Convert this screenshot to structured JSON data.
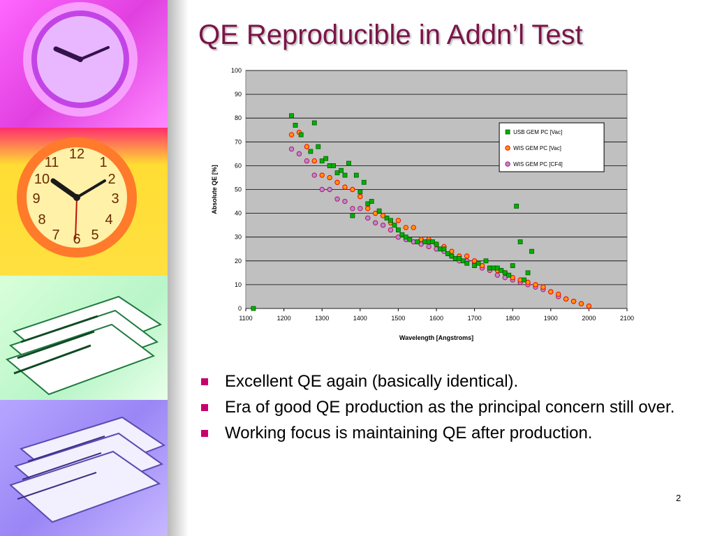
{
  "slide": {
    "title": "QE Reproducible in Addn’l Test",
    "bullets": [
      "Excellent QE again (basically identical).",
      "Era of good QE production as the principal concern still over.",
      "Working focus is maintaining QE after production."
    ],
    "page_number": "2"
  },
  "sidebar": {
    "images": [
      "purple-clock",
      "yellow-clock",
      "green-papers",
      "purple-papers"
    ]
  },
  "colors": {
    "title": "#7a1548",
    "bullet_marker": "#c8006e",
    "plot_background": "#c0c0c0",
    "usb_vac": "#00b000",
    "wis_vac": "#ff9900",
    "wis_cf4": "#b48cd2"
  },
  "chart_data": {
    "type": "scatter",
    "title": "",
    "xlabel": "Wavelength [Angstroms]",
    "ylabel": "Absolute QE [%]",
    "xlim": [
      1100,
      2100
    ],
    "ylim": [
      0,
      100
    ],
    "xticks": [
      1100,
      1200,
      1300,
      1400,
      1500,
      1600,
      1700,
      1800,
      1900,
      2000,
      2100
    ],
    "yticks": [
      0,
      10,
      20,
      30,
      40,
      50,
      60,
      70,
      80,
      90,
      100
    ],
    "grid": "horizontal",
    "legend_position": "upper-right",
    "series": [
      {
        "name": "USB GEM PC [Vac]",
        "marker": "square",
        "points": [
          [
            1120,
            0
          ],
          [
            1220,
            81
          ],
          [
            1230,
            77
          ],
          [
            1245,
            73
          ],
          [
            1270,
            66
          ],
          [
            1280,
            78
          ],
          [
            1290,
            68
          ],
          [
            1300,
            62
          ],
          [
            1310,
            63
          ],
          [
            1320,
            60
          ],
          [
            1330,
            60
          ],
          [
            1340,
            57
          ],
          [
            1350,
            58
          ],
          [
            1360,
            56
          ],
          [
            1370,
            61
          ],
          [
            1380,
            39
          ],
          [
            1390,
            56
          ],
          [
            1400,
            49
          ],
          [
            1410,
            53
          ],
          [
            1420,
            44
          ],
          [
            1430,
            45
          ],
          [
            1450,
            41
          ],
          [
            1470,
            38
          ],
          [
            1480,
            37
          ],
          [
            1490,
            35
          ],
          [
            1500,
            33
          ],
          [
            1510,
            31
          ],
          [
            1520,
            30
          ],
          [
            1530,
            29
          ],
          [
            1550,
            28
          ],
          [
            1570,
            28
          ],
          [
            1580,
            28
          ],
          [
            1590,
            28
          ],
          [
            1600,
            27
          ],
          [
            1610,
            25
          ],
          [
            1620,
            25
          ],
          [
            1630,
            23
          ],
          [
            1640,
            22
          ],
          [
            1650,
            21
          ],
          [
            1660,
            21
          ],
          [
            1670,
            20
          ],
          [
            1680,
            19
          ],
          [
            1700,
            18
          ],
          [
            1710,
            19
          ],
          [
            1730,
            20
          ],
          [
            1740,
            17
          ],
          [
            1750,
            17
          ],
          [
            1760,
            17
          ],
          [
            1770,
            16
          ],
          [
            1780,
            15
          ],
          [
            1790,
            14
          ],
          [
            1800,
            18
          ],
          [
            1810,
            43
          ],
          [
            1820,
            28
          ],
          [
            1830,
            12
          ],
          [
            1840,
            15
          ],
          [
            1850,
            24
          ]
        ]
      },
      {
        "name": "WIS GEM PC [Vac]",
        "marker": "circle",
        "points": [
          [
            1220,
            73
          ],
          [
            1240,
            74
          ],
          [
            1260,
            68
          ],
          [
            1280,
            62
          ],
          [
            1300,
            56
          ],
          [
            1320,
            55
          ],
          [
            1340,
            53
          ],
          [
            1360,
            51
          ],
          [
            1380,
            50
          ],
          [
            1400,
            47
          ],
          [
            1420,
            42
          ],
          [
            1440,
            40
          ],
          [
            1460,
            39
          ],
          [
            1480,
            36
          ],
          [
            1500,
            37
          ],
          [
            1520,
            34
          ],
          [
            1540,
            34
          ],
          [
            1560,
            29
          ],
          [
            1580,
            29
          ],
          [
            1600,
            27
          ],
          [
            1620,
            26
          ],
          [
            1640,
            24
          ],
          [
            1660,
            22
          ],
          [
            1680,
            22
          ],
          [
            1700,
            20
          ],
          [
            1720,
            18
          ],
          [
            1740,
            17
          ],
          [
            1760,
            16
          ],
          [
            1780,
            15
          ],
          [
            1800,
            13
          ],
          [
            1820,
            12
          ],
          [
            1840,
            11
          ],
          [
            1860,
            10
          ],
          [
            1880,
            9
          ],
          [
            1900,
            7
          ],
          [
            1920,
            6
          ],
          [
            1940,
            4
          ],
          [
            1960,
            3
          ],
          [
            1980,
            2
          ],
          [
            2000,
            1
          ]
        ]
      },
      {
        "name": "WIS GEM PC [CF4]",
        "marker": "circle",
        "points": [
          [
            1220,
            67
          ],
          [
            1240,
            65
          ],
          [
            1260,
            62
          ],
          [
            1280,
            56
          ],
          [
            1300,
            50
          ],
          [
            1320,
            50
          ],
          [
            1340,
            46
          ],
          [
            1360,
            45
          ],
          [
            1380,
            42
          ],
          [
            1400,
            42
          ],
          [
            1420,
            38
          ],
          [
            1440,
            36
          ],
          [
            1460,
            35
          ],
          [
            1480,
            33
          ],
          [
            1500,
            30
          ],
          [
            1520,
            29
          ],
          [
            1540,
            28
          ],
          [
            1560,
            27
          ],
          [
            1580,
            26
          ],
          [
            1600,
            25
          ],
          [
            1620,
            24
          ],
          [
            1640,
            22
          ],
          [
            1660,
            20
          ],
          [
            1680,
            20
          ],
          [
            1700,
            19
          ],
          [
            1720,
            17
          ],
          [
            1740,
            16
          ],
          [
            1760,
            14
          ],
          [
            1780,
            13
          ],
          [
            1800,
            12
          ],
          [
            1820,
            11
          ],
          [
            1840,
            10
          ],
          [
            1860,
            9
          ],
          [
            1880,
            8
          ],
          [
            1900,
            7
          ],
          [
            1920,
            5
          ],
          [
            1940,
            4
          ],
          [
            1960,
            3
          ],
          [
            1980,
            2
          ],
          [
            2000,
            1
          ]
        ]
      }
    ]
  }
}
